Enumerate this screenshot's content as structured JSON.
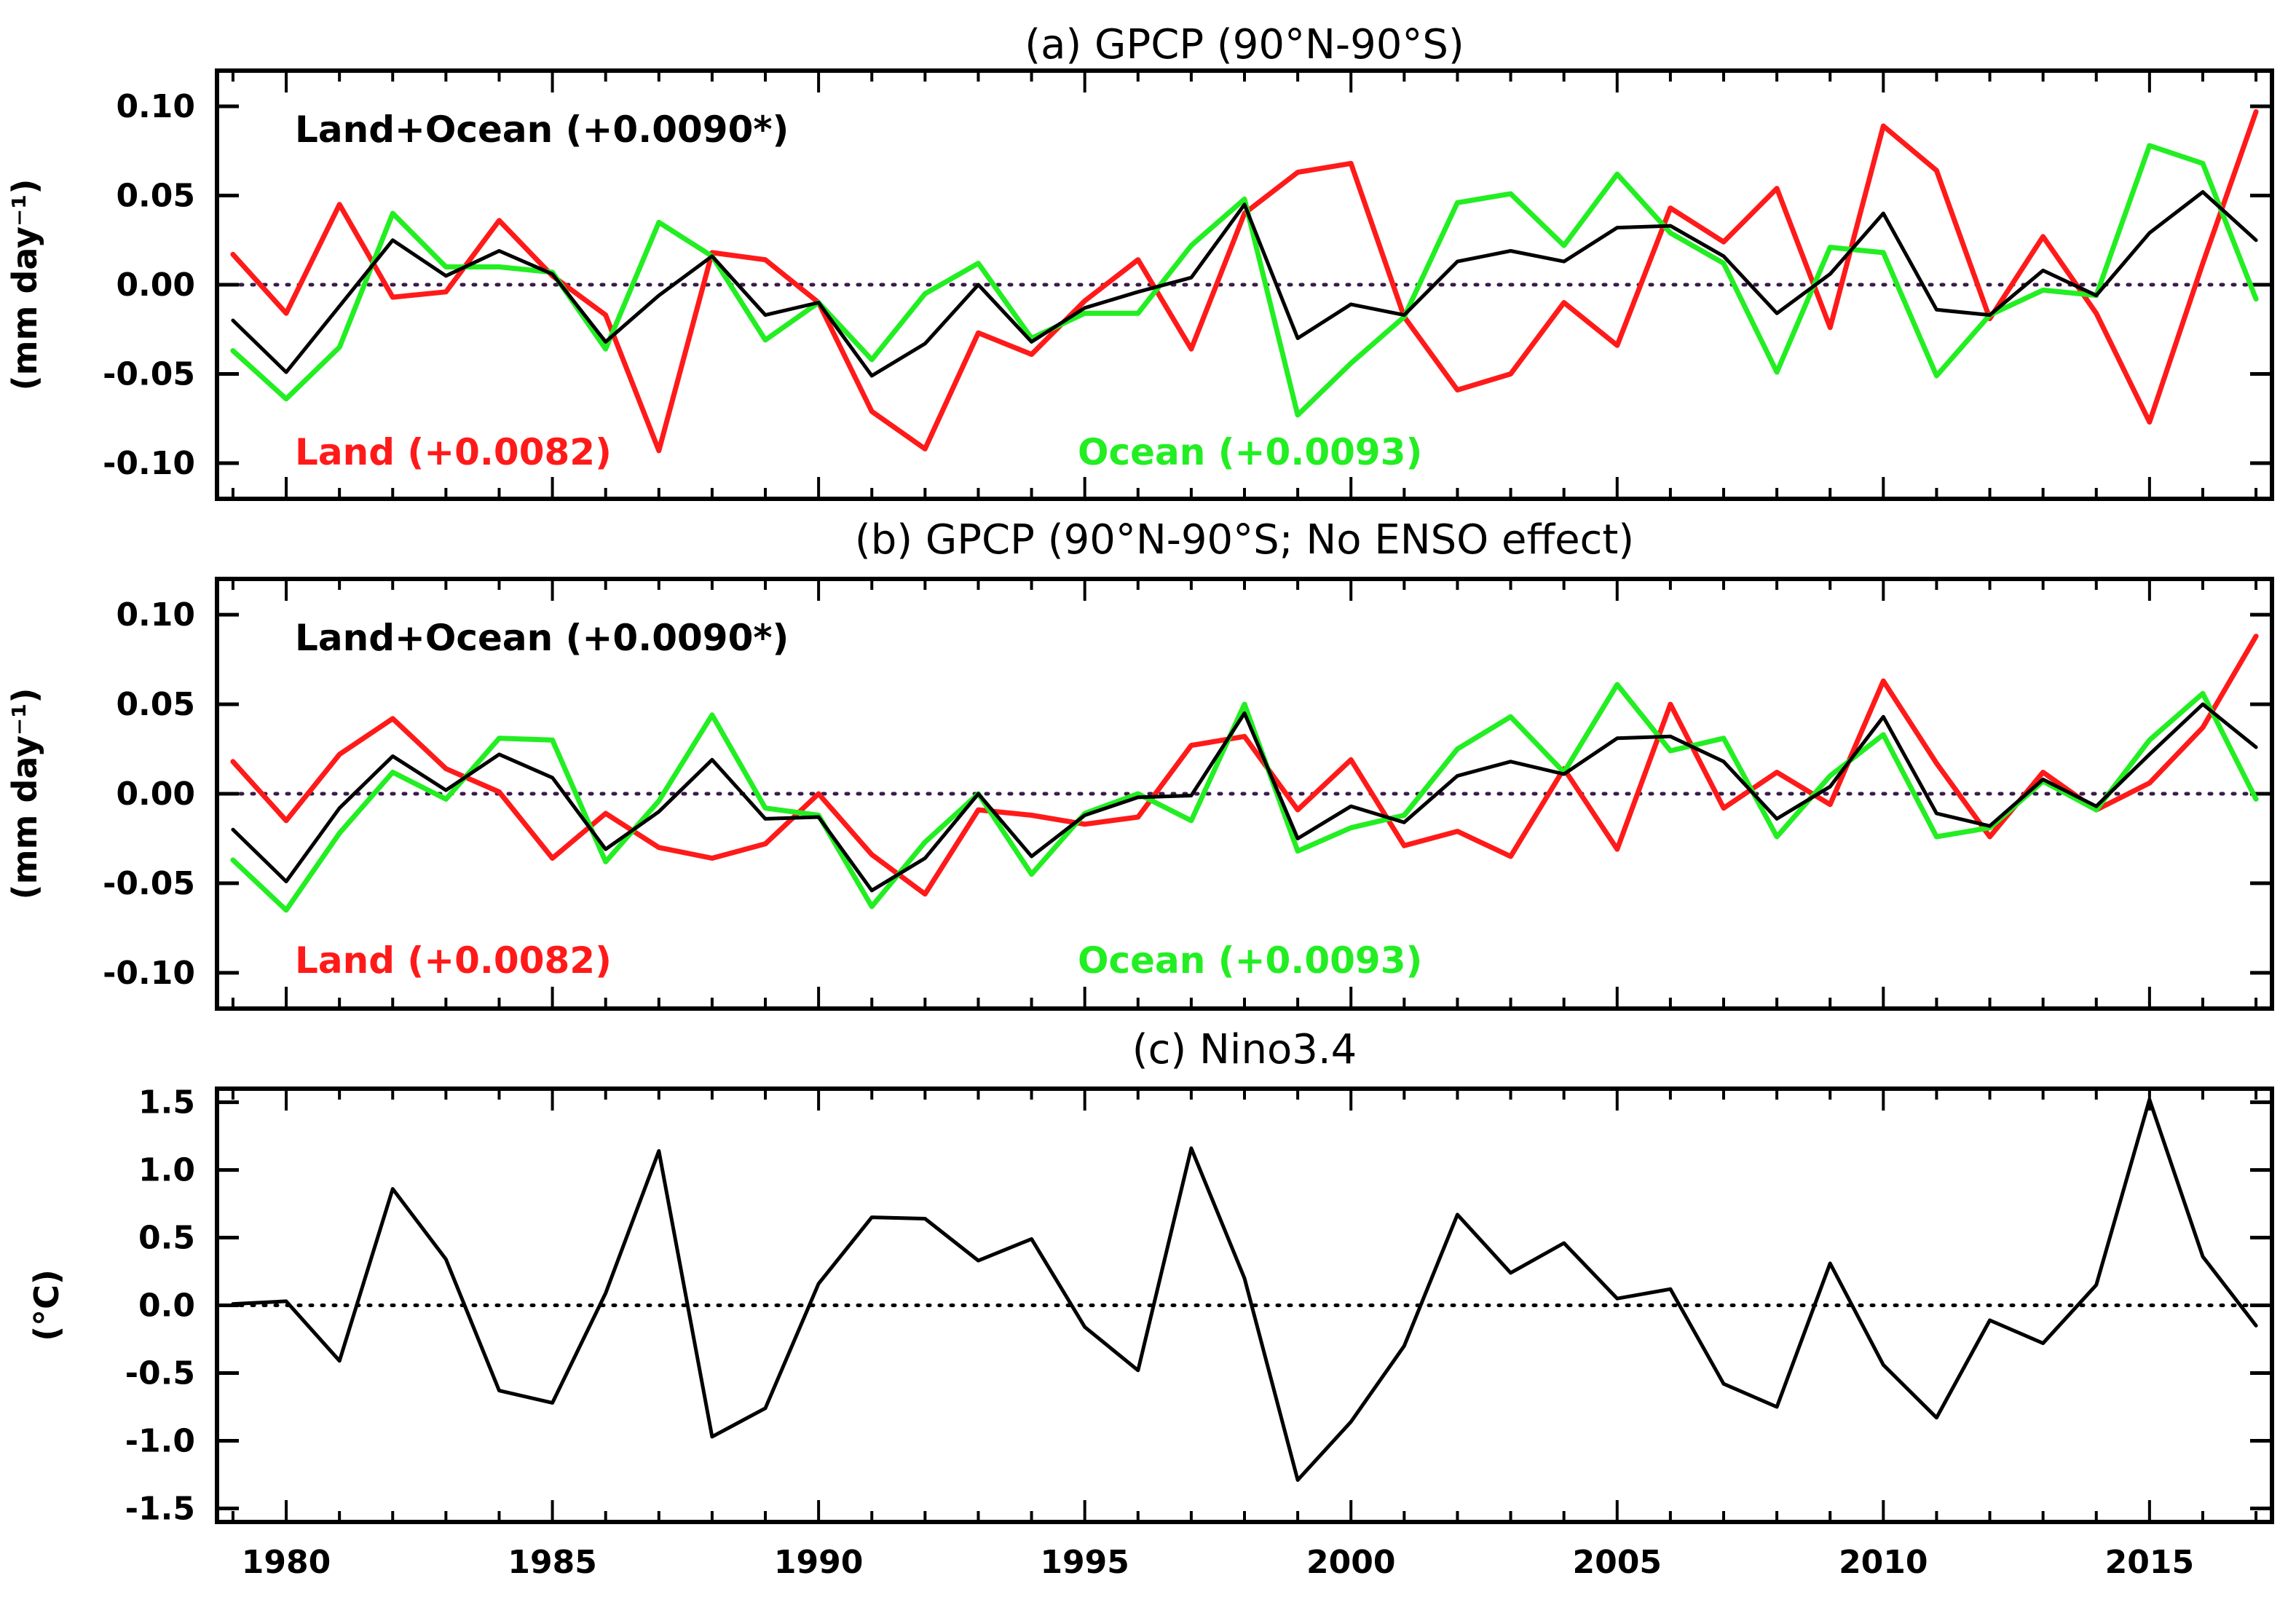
{
  "chart_data": [
    {
      "type": "line",
      "title": "(a) GPCP (90°N-90°S)",
      "xlabel": "",
      "ylabel": "(mm day⁻¹)",
      "xlim": [
        1978.7,
        2017.3
      ],
      "ylim": [
        -0.12,
        0.12
      ],
      "yticks": [
        0.1,
        0.05,
        0.0,
        -0.05,
        -0.1
      ],
      "ytick_labels": [
        "0.10",
        "0.05",
        "0.00",
        "-0.05",
        "-0.10"
      ],
      "zero_line": true,
      "x": [
        1979,
        1980,
        1981,
        1982,
        1983,
        1984,
        1985,
        1986,
        1987,
        1988,
        1989,
        1990,
        1991,
        1992,
        1993,
        1994,
        1995,
        1996,
        1997,
        1998,
        1999,
        2000,
        2001,
        2002,
        2003,
        2004,
        2005,
        2006,
        2007,
        2008,
        2009,
        2010,
        2011,
        2012,
        2013,
        2014,
        2015,
        2016,
        2017
      ],
      "series": [
        {
          "name": "Land+Ocean",
          "color": "#000000",
          "label": "Land+Ocean (+0.0090*)",
          "values": [
            -0.02,
            -0.049,
            -0.012,
            0.025,
            0.005,
            0.019,
            0.006,
            -0.032,
            -0.006,
            0.016,
            -0.017,
            -0.01,
            -0.051,
            -0.033,
            0.0,
            -0.032,
            -0.013,
            -0.004,
            0.004,
            0.045,
            -0.03,
            -0.011,
            -0.017,
            0.013,
            0.019,
            0.013,
            0.032,
            0.033,
            0.016,
            -0.016,
            0.006,
            0.04,
            -0.014,
            -0.017,
            0.008,
            -0.006,
            0.029,
            0.052,
            0.025
          ]
        },
        {
          "name": "Land",
          "color": "#ff1a1a",
          "label": "Land (+0.0082)",
          "values": [
            0.017,
            -0.016,
            0.045,
            -0.007,
            -0.004,
            0.036,
            0.005,
            -0.017,
            -0.093,
            0.018,
            0.014,
            -0.01,
            -0.071,
            -0.092,
            -0.027,
            -0.039,
            -0.009,
            0.014,
            -0.036,
            0.04,
            0.063,
            0.068,
            -0.018,
            -0.059,
            -0.05,
            -0.01,
            -0.034,
            0.043,
            0.024,
            0.054,
            -0.024,
            0.089,
            0.064,
            -0.019,
            0.027,
            -0.016,
            -0.077,
            0.012,
            0.097
          ]
        },
        {
          "name": "Ocean",
          "color": "#22ee22",
          "label": "Ocean (+0.0093)",
          "values": [
            -0.037,
            -0.064,
            -0.035,
            0.04,
            0.01,
            0.01,
            0.007,
            -0.036,
            0.035,
            0.016,
            -0.031,
            -0.01,
            -0.042,
            -0.005,
            0.012,
            -0.03,
            -0.016,
            -0.016,
            0.022,
            0.048,
            -0.073,
            -0.044,
            -0.018,
            0.046,
            0.051,
            0.022,
            0.062,
            0.029,
            0.012,
            -0.049,
            0.021,
            0.018,
            -0.051,
            -0.017,
            -0.003,
            -0.006,
            0.078,
            0.068,
            -0.008
          ]
        }
      ],
      "annotations": [
        "Land+Ocean (+0.0090*)",
        "Land (+0.0082)",
        "Ocean (+0.0093)"
      ]
    },
    {
      "type": "line",
      "title": "(b) GPCP (90°N-90°S; No ENSO effect)",
      "xlabel": "",
      "ylabel": "(mm day⁻¹)",
      "xlim": [
        1978.7,
        2017.3
      ],
      "ylim": [
        -0.12,
        0.12
      ],
      "yticks": [
        0.1,
        0.05,
        0.0,
        -0.05,
        -0.1
      ],
      "ytick_labels": [
        "0.10",
        "0.05",
        "0.00",
        "-0.05",
        "-0.10"
      ],
      "zero_line": true,
      "x": [
        1979,
        1980,
        1981,
        1982,
        1983,
        1984,
        1985,
        1986,
        1987,
        1988,
        1989,
        1990,
        1991,
        1992,
        1993,
        1994,
        1995,
        1996,
        1997,
        1998,
        1999,
        2000,
        2001,
        2002,
        2003,
        2004,
        2005,
        2006,
        2007,
        2008,
        2009,
        2010,
        2011,
        2012,
        2013,
        2014,
        2015,
        2016,
        2017
      ],
      "series": [
        {
          "name": "Land+Ocean",
          "color": "#000000",
          "label": "Land+Ocean (+0.0090*)",
          "values": [
            -0.02,
            -0.049,
            -0.008,
            0.021,
            0.002,
            0.022,
            0.009,
            -0.031,
            -0.01,
            0.019,
            -0.014,
            -0.013,
            -0.054,
            -0.036,
            0.0,
            -0.035,
            -0.012,
            -0.002,
            -0.001,
            0.045,
            -0.025,
            -0.007,
            -0.016,
            0.01,
            0.018,
            0.011,
            0.031,
            0.032,
            0.018,
            -0.014,
            0.004,
            0.043,
            -0.011,
            -0.018,
            0.008,
            -0.007,
            0.022,
            0.05,
            0.026
          ]
        },
        {
          "name": "Land",
          "color": "#ff1a1a",
          "label": "Land (+0.0082)",
          "values": [
            0.018,
            -0.015,
            0.022,
            0.042,
            0.014,
            0.001,
            -0.036,
            -0.011,
            -0.03,
            -0.036,
            -0.028,
            0.0,
            -0.034,
            -0.056,
            -0.009,
            -0.012,
            -0.017,
            -0.013,
            0.027,
            0.032,
            -0.009,
            0.019,
            -0.029,
            -0.021,
            -0.035,
            0.014,
            -0.031,
            0.05,
            -0.008,
            0.012,
            -0.006,
            0.063,
            0.017,
            -0.024,
            0.012,
            -0.009,
            0.006,
            0.037,
            0.088
          ]
        },
        {
          "name": "Ocean",
          "color": "#22ee22",
          "label": "Ocean (+0.0093)",
          "values": [
            -0.037,
            -0.065,
            -0.022,
            0.012,
            -0.003,
            0.031,
            0.03,
            -0.038,
            -0.004,
            0.044,
            -0.008,
            -0.012,
            -0.063,
            -0.027,
            0.0,
            -0.045,
            -0.011,
            0.0,
            -0.015,
            0.05,
            -0.032,
            -0.019,
            -0.012,
            0.025,
            0.043,
            0.012,
            0.061,
            0.024,
            0.031,
            -0.024,
            0.01,
            0.033,
            -0.024,
            -0.019,
            0.007,
            -0.009,
            0.03,
            0.056,
            -0.003
          ]
        }
      ],
      "annotations": [
        "Land+Ocean (+0.0090*)",
        "Land (+0.0082)",
        "Ocean (+0.0093)"
      ]
    },
    {
      "type": "line",
      "title": "(c) Nino3.4",
      "xlabel": "",
      "ylabel": "(°C)",
      "xlim": [
        1978.7,
        2017.3
      ],
      "ylim": [
        -1.6,
        1.6
      ],
      "yticks": [
        1.5,
        1.0,
        0.5,
        0.0,
        -0.5,
        -1.0,
        -1.5
      ],
      "ytick_labels": [
        "1.5",
        "1.0",
        "0.5",
        "0.0",
        "-0.5",
        "-1.0",
        "-1.5"
      ],
      "xticks": [
        1980,
        1985,
        1990,
        1995,
        2000,
        2005,
        2010,
        2015
      ],
      "xtick_labels": [
        "1980",
        "1985",
        "1990",
        "1995",
        "2000",
        "2005",
        "2010",
        "2015"
      ],
      "zero_line": true,
      "x": [
        1979,
        1980,
        1981,
        1982,
        1983,
        1984,
        1985,
        1986,
        1987,
        1988,
        1989,
        1990,
        1991,
        1992,
        1993,
        1994,
        1995,
        1996,
        1997,
        1998,
        1999,
        2000,
        2001,
        2002,
        2003,
        2004,
        2005,
        2006,
        2007,
        2008,
        2009,
        2010,
        2011,
        2012,
        2013,
        2014,
        2015,
        2016,
        2017
      ],
      "series": [
        {
          "name": "Nino3.4",
          "color": "#000000",
          "values": [
            0.01,
            0.03,
            -0.41,
            0.86,
            0.34,
            -0.63,
            -0.72,
            0.09,
            1.14,
            -0.97,
            -0.76,
            0.16,
            0.65,
            0.64,
            0.33,
            0.49,
            -0.16,
            -0.48,
            1.16,
            0.2,
            -1.29,
            -0.86,
            -0.3,
            0.67,
            0.24,
            0.46,
            0.05,
            0.12,
            -0.58,
            -0.75,
            0.31,
            -0.44,
            -0.83,
            -0.11,
            -0.28,
            0.15,
            1.52,
            0.36,
            -0.15
          ]
        }
      ]
    }
  ]
}
